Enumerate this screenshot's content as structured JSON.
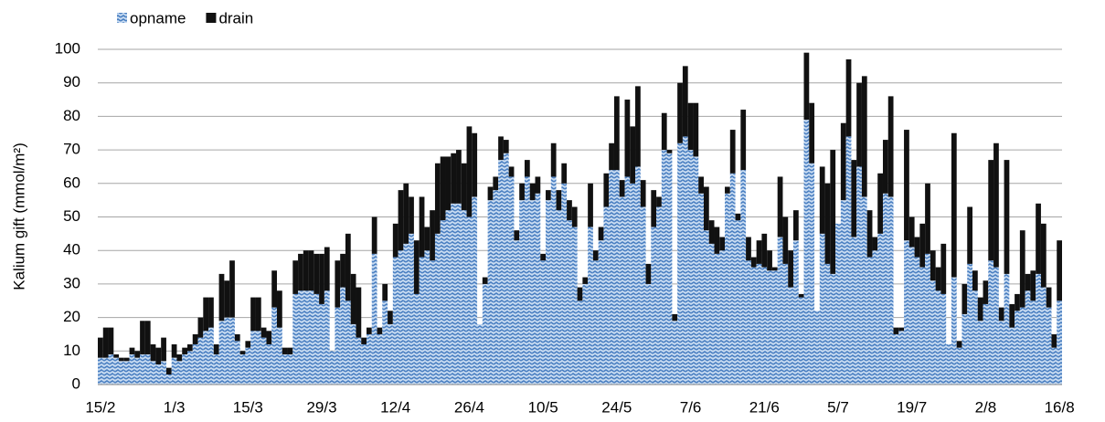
{
  "chart_data": {
    "type": "stacked-bar",
    "ylabel": "Kalium gift (mmol/m²)",
    "ylim": [
      0,
      100
    ],
    "yticks": [
      0,
      10,
      20,
      30,
      40,
      50,
      60,
      70,
      80,
      90,
      100
    ],
    "grid": true,
    "legend": "top-left",
    "categories": [
      "15/2",
      null,
      null,
      null,
      null,
      null,
      null,
      null,
      null,
      null,
      null,
      null,
      null,
      null,
      "1/3",
      null,
      null,
      null,
      null,
      null,
      null,
      null,
      null,
      null,
      null,
      null,
      null,
      null,
      "15/3",
      null,
      null,
      null,
      null,
      null,
      null,
      null,
      null,
      null,
      null,
      null,
      null,
      null,
      "29/3",
      null,
      null,
      null,
      null,
      null,
      null,
      null,
      null,
      null,
      null,
      null,
      null,
      null,
      "12/4",
      null,
      null,
      null,
      null,
      null,
      null,
      null,
      null,
      null,
      null,
      null,
      null,
      null,
      "26/4",
      null,
      null,
      null,
      null,
      null,
      null,
      null,
      null,
      null,
      null,
      null,
      null,
      null,
      "10/5",
      null,
      null,
      null,
      null,
      null,
      null,
      null,
      null,
      null,
      null,
      null,
      null,
      null,
      "24/5",
      null,
      null,
      null,
      null,
      null,
      null,
      null,
      null,
      null,
      null,
      null,
      null,
      null,
      "7/6",
      null,
      null,
      null,
      null,
      null,
      null,
      null,
      null,
      null,
      null,
      null,
      null,
      null,
      "21/6",
      null,
      null,
      null,
      null,
      null,
      null,
      null,
      null,
      null,
      null,
      null,
      null,
      null,
      "5/7",
      null,
      null,
      null,
      null,
      null,
      null,
      null,
      null,
      null,
      null,
      null,
      null,
      null,
      "19/7",
      null,
      null,
      null,
      null,
      null,
      null,
      null,
      null,
      null,
      null,
      null,
      null,
      null,
      "2/8",
      null,
      null,
      null,
      null,
      null,
      null,
      null,
      null,
      null,
      null,
      null,
      null,
      null,
      "16/8"
    ],
    "series": [
      {
        "name": "opname",
        "color": "#4a7fc1",
        "values": [
          8,
          8,
          9,
          8,
          7,
          7,
          9,
          8,
          9,
          9,
          7,
          6,
          7,
          3,
          8,
          7,
          9,
          10,
          12,
          14,
          16,
          17,
          9,
          19,
          20,
          20,
          13,
          9,
          11,
          16,
          16,
          14,
          12,
          23,
          17,
          9,
          9,
          27,
          28,
          28,
          28,
          27,
          24,
          28,
          10,
          23,
          29,
          25,
          18,
          14,
          12,
          15,
          39,
          15,
          25,
          18,
          38,
          40,
          42,
          45,
          27,
          38,
          40,
          37,
          45,
          49,
          52,
          54,
          54,
          52,
          50,
          56,
          18,
          30,
          55,
          58,
          67,
          69,
          62,
          43,
          55,
          62,
          55,
          57,
          37,
          55,
          62,
          52,
          60,
          49,
          47,
          25,
          30,
          47,
          37,
          43,
          53,
          64,
          64,
          56,
          62,
          60,
          65,
          53,
          30,
          47,
          53,
          70,
          69,
          19,
          72,
          74,
          70,
          68,
          57,
          46,
          42,
          39,
          40,
          57,
          63,
          49,
          64,
          37,
          35,
          36,
          35,
          34,
          34,
          44,
          36,
          29,
          43,
          26,
          79,
          66,
          22,
          45,
          36,
          33,
          48,
          55,
          74,
          44,
          65,
          56,
          38,
          40,
          45,
          57,
          56,
          15,
          16,
          43,
          41,
          38,
          35,
          39,
          31,
          28,
          27,
          12,
          32,
          11,
          21,
          36,
          28,
          19,
          24,
          37,
          35,
          19,
          33,
          17,
          22,
          23,
          28,
          25,
          33,
          29,
          23,
          11,
          25
        ]
      },
      {
        "name": "drain",
        "color": "#111111",
        "values": [
          6,
          9,
          8,
          1,
          1,
          1,
          2,
          2,
          10,
          10,
          5,
          5,
          7,
          2,
          4,
          2,
          2,
          2,
          3,
          6,
          10,
          9,
          3,
          14,
          11,
          17,
          2,
          1,
          2,
          10,
          10,
          3,
          4,
          11,
          11,
          2,
          2,
          10,
          11,
          12,
          12,
          12,
          15,
          13,
          0,
          14,
          10,
          20,
          15,
          15,
          2,
          2,
          11,
          2,
          5,
          4,
          10,
          18,
          18,
          11,
          16,
          18,
          7,
          15,
          21,
          19,
          16,
          15,
          16,
          14,
          27,
          19,
          0,
          2,
          4,
          4,
          7,
          4,
          3,
          3,
          5,
          5,
          5,
          5,
          2,
          3,
          10,
          6,
          6,
          6,
          6,
          4,
          2,
          13,
          3,
          4,
          10,
          8,
          22,
          5,
          23,
          17,
          24,
          8,
          6,
          11,
          3,
          11,
          1,
          2,
          18,
          21,
          14,
          16,
          5,
          13,
          7,
          8,
          4,
          2,
          13,
          2,
          18,
          7,
          3,
          7,
          10,
          6,
          1,
          18,
          14,
          11,
          9,
          1,
          20,
          18,
          0,
          20,
          24,
          37,
          0,
          23,
          23,
          23,
          25,
          36,
          14,
          4,
          18,
          16,
          30,
          2,
          1,
          33,
          9,
          6,
          13,
          21,
          9,
          7,
          15,
          0,
          43,
          2,
          9,
          17,
          6,
          7,
          7,
          30,
          37,
          4,
          34,
          7,
          5,
          23,
          5,
          9,
          21,
          19,
          6,
          4,
          18
        ]
      }
    ]
  }
}
